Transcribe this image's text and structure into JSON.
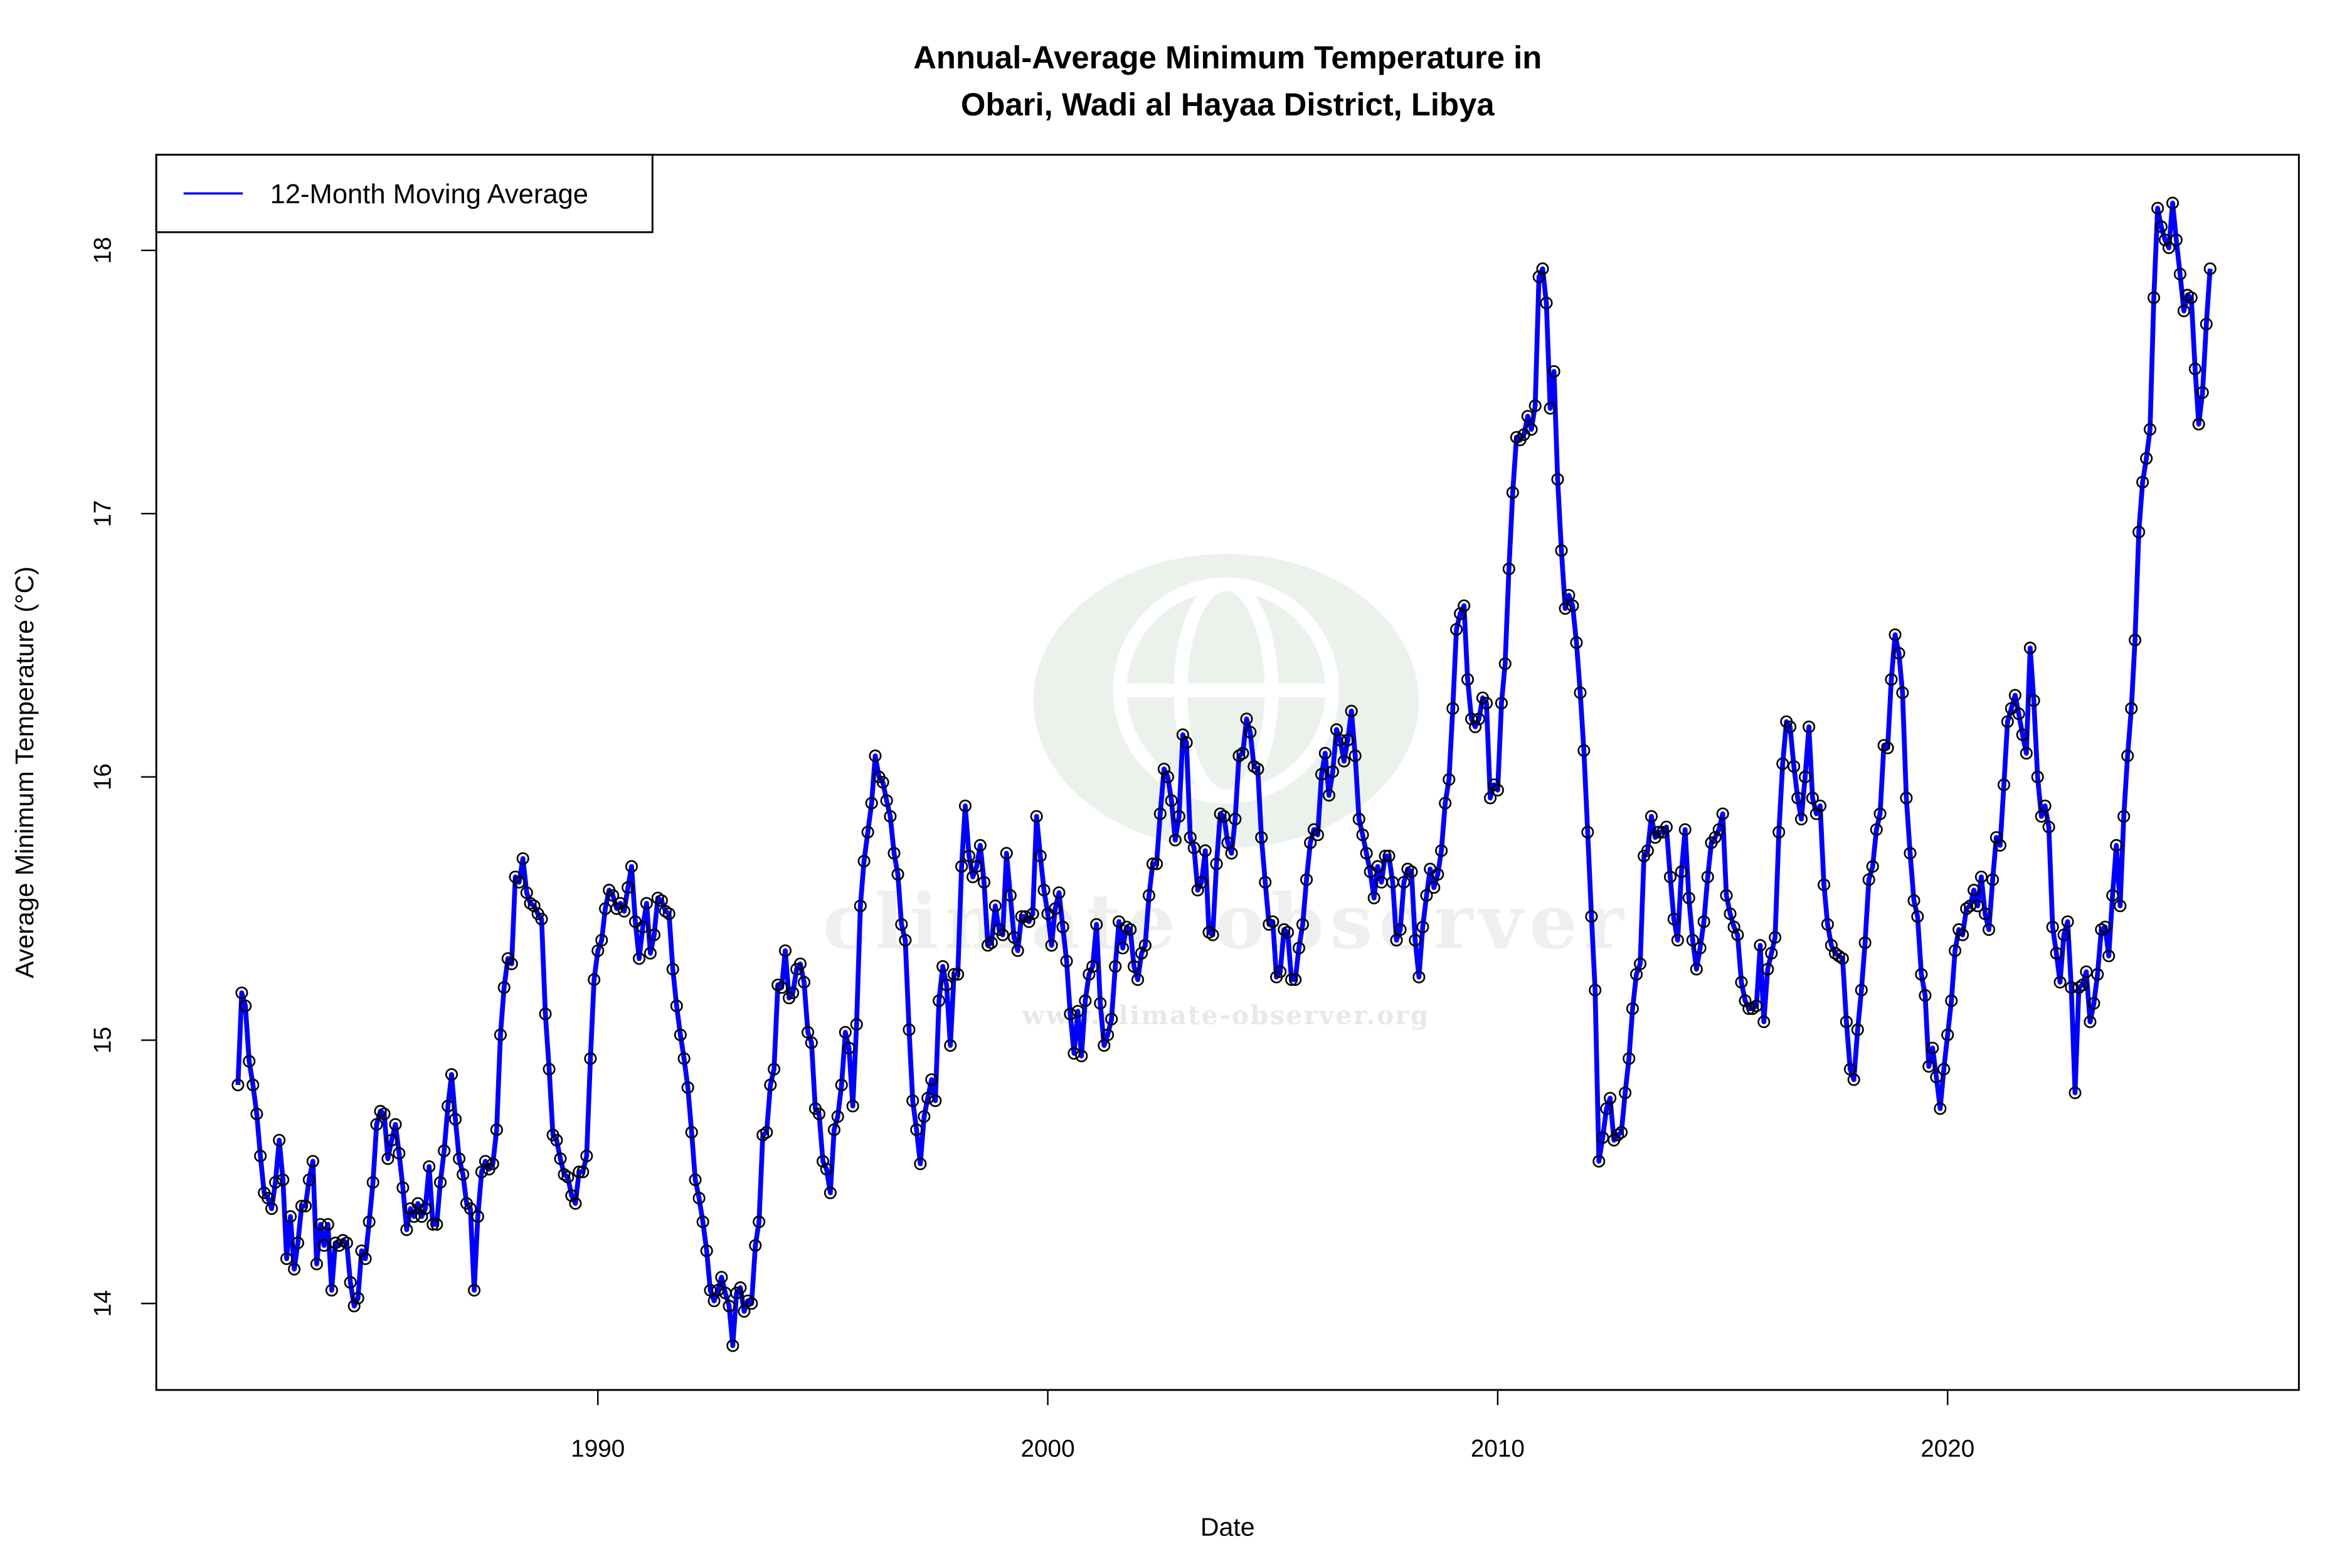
{
  "chart_data": {
    "type": "line",
    "title": "Annual-Average Minimum Temperature in",
    "subtitle": "Obari, Wadi al Hayaa District, Libya",
    "xlabel": "Date",
    "ylabel": "Average Minimum Temperature (°C)",
    "x_ticks": [
      "1990",
      "2000",
      "2010",
      "2020"
    ],
    "y_ticks": [
      "14",
      "15",
      "16",
      "17",
      "18"
    ],
    "xlim": [
      "1981-07",
      "2026-10"
    ],
    "ylim": [
      13.64,
      18.35
    ],
    "grid": false,
    "legend": {
      "placement": "top-left",
      "entries": [
        "12-Month Moving Average"
      ]
    },
    "series": [
      {
        "name": "12-Month Moving Average",
        "color": "#0000FF",
        "marker": "open-circle",
        "frequency": "monthly",
        "values_by_year": {
          "1982": [
            14.83,
            15.18,
            15.13,
            14.92,
            14.83,
            14.72,
            14.56,
            14.42,
            14.4,
            14.36,
            14.46,
            14.62
          ],
          "1983": [
            14.47,
            14.17,
            14.33,
            14.13,
            14.23,
            14.37,
            14.37,
            14.47,
            14.54,
            14.15,
            14.3,
            14.22
          ],
          "1984": [
            14.3,
            14.05,
            14.23,
            14.22,
            14.24,
            14.23,
            14.08,
            13.99,
            14.02,
            14.2,
            14.17,
            14.31
          ],
          "1985": [
            14.46,
            14.68,
            14.73,
            14.72,
            14.55,
            14.62,
            14.68,
            14.57,
            14.44,
            14.28,
            14.36,
            14.33
          ],
          "1986": [
            14.38,
            14.33,
            14.36,
            14.52,
            14.3,
            14.3,
            14.46,
            14.58,
            14.75,
            14.87,
            14.7,
            14.55
          ],
          "1987": [
            14.49,
            14.38,
            14.36,
            14.05,
            14.33,
            14.5,
            14.54,
            14.51,
            14.53,
            14.66,
            15.02,
            15.2
          ],
          "1988": [
            15.31,
            15.29,
            15.62,
            15.6,
            15.69,
            15.56,
            15.52,
            15.51,
            15.48,
            15.46,
            15.1,
            14.89
          ],
          "1989": [
            14.64,
            14.62,
            14.55,
            14.49,
            14.48,
            14.41,
            14.38,
            14.5,
            14.5,
            14.56,
            14.93,
            15.23
          ],
          "1990": [
            15.34,
            15.38,
            15.5,
            15.57,
            15.55,
            15.5,
            15.52,
            15.49,
            15.58,
            15.66,
            15.45,
            15.31
          ],
          "1991": [
            15.43,
            15.52,
            15.33,
            15.4,
            15.54,
            15.53,
            15.49,
            15.48,
            15.27,
            15.13,
            15.02,
            14.93
          ],
          "1992": [
            14.82,
            14.65,
            14.47,
            14.4,
            14.31,
            14.2,
            14.05,
            14.01,
            14.05,
            14.1,
            14.04,
            13.99
          ],
          "1993": [
            13.84,
            14.04,
            14.06,
            13.97,
            14.01,
            14.0,
            14.22,
            14.31,
            14.64,
            14.65,
            14.83,
            14.89
          ],
          "1994": [
            15.21,
            15.2,
            15.34,
            15.16,
            15.18,
            15.27,
            15.29,
            15.22,
            15.03,
            14.99,
            14.74,
            14.72
          ],
          "1995": [
            14.54,
            14.51,
            14.42,
            14.66,
            14.71,
            14.83,
            15.03,
            14.97,
            14.75,
            15.06,
            15.51,
            15.68
          ],
          "1996": [
            15.79,
            15.9,
            16.08,
            16.0,
            15.98,
            15.91,
            15.85,
            15.71,
            15.63,
            15.44,
            15.38,
            15.04
          ],
          "1997": [
            14.77,
            14.66,
            14.53,
            14.71,
            14.78,
            14.85,
            14.77,
            15.15,
            15.28,
            15.21,
            14.98,
            15.25
          ],
          "1998": [
            15.25,
            15.66,
            15.89,
            15.7,
            15.62,
            15.66,
            15.74,
            15.6,
            15.36,
            15.37,
            15.51,
            15.42
          ],
          "1999": [
            15.4,
            15.71,
            15.55,
            15.39,
            15.34,
            15.47,
            15.47,
            15.45,
            15.48,
            15.85,
            15.7,
            15.57
          ],
          "2000": [
            15.48,
            15.36,
            15.5,
            15.56,
            15.43,
            15.3,
            15.1,
            14.95,
            15.11,
            14.94,
            15.15,
            15.25
          ],
          "2001": [
            15.28,
            15.44,
            15.14,
            14.98,
            15.02,
            15.08,
            15.28,
            15.45,
            15.35,
            15.43,
            15.42,
            15.28
          ],
          "2002": [
            15.23,
            15.33,
            15.36,
            15.55,
            15.67,
            15.67,
            15.86,
            16.03,
            16.0,
            15.91,
            15.76,
            15.85
          ],
          "2003": [
            16.16,
            16.13,
            15.77,
            15.73,
            15.57,
            15.6,
            15.72,
            15.41,
            15.4,
            15.67,
            15.86,
            15.85
          ],
          "2004": [
            15.75,
            15.71,
            15.84,
            16.08,
            16.09,
            16.22,
            16.17,
            16.04,
            16.03,
            15.77,
            15.6,
            15.44
          ],
          "2005": [
            15.45,
            15.24,
            15.26,
            15.42,
            15.41,
            15.23,
            15.23,
            15.35,
            15.44,
            15.61,
            15.75,
            15.8
          ],
          "2006": [
            15.78,
            16.01,
            16.09,
            15.93,
            16.02,
            16.18,
            16.14,
            16.06,
            16.14,
            16.25,
            16.08,
            15.84
          ],
          "2007": [
            15.78,
            15.71,
            15.64,
            15.54,
            15.66,
            15.6,
            15.7,
            15.7,
            15.6,
            15.38,
            15.42,
            15.6
          ],
          "2008": [
            15.65,
            15.64,
            15.38,
            15.24,
            15.43,
            15.55,
            15.65,
            15.58,
            15.63,
            15.72,
            15.9,
            15.99
          ],
          "2009": [
            16.26,
            16.56,
            16.62,
            16.65,
            16.37,
            16.22,
            16.19,
            16.22,
            16.3,
            16.28,
            15.92,
            15.97
          ],
          "2010": [
            15.95,
            16.28,
            16.43,
            16.79,
            17.08,
            17.29,
            17.28,
            17.3,
            17.37,
            17.32,
            17.41,
            17.9
          ],
          "2011": [
            17.93,
            17.8,
            17.4,
            17.54,
            17.13,
            16.86,
            16.64,
            16.69,
            16.65,
            16.51,
            16.32,
            16.1
          ],
          "2012": [
            15.79,
            15.47,
            15.19,
            14.54,
            14.63,
            14.74,
            14.78,
            14.62,
            14.64,
            14.65,
            14.8,
            14.93
          ],
          "2013": [
            15.12,
            15.25,
            15.29,
            15.7,
            15.72,
            15.85,
            15.77,
            15.79,
            15.79,
            15.81,
            15.62,
            15.46
          ],
          "2014": [
            15.38,
            15.64,
            15.8,
            15.54,
            15.38,
            15.27,
            15.35,
            15.45,
            15.62,
            15.75,
            15.77,
            15.8
          ],
          "2015": [
            15.86,
            15.55,
            15.48,
            15.43,
            15.4,
            15.22,
            15.15,
            15.12,
            15.12,
            15.13,
            15.36,
            15.07
          ],
          "2016": [
            15.27,
            15.33,
            15.39,
            15.79,
            16.05,
            16.21,
            16.19,
            16.04,
            15.92,
            15.84,
            16.0,
            16.19
          ],
          "2017": [
            15.92,
            15.86,
            15.89,
            15.59,
            15.44,
            15.36,
            15.33,
            15.32,
            15.31,
            15.07,
            14.89,
            14.85
          ],
          "2018": [
            15.04,
            15.19,
            15.37,
            15.61,
            15.66,
            15.8,
            15.86,
            16.12,
            16.11,
            16.37,
            16.54,
            16.47
          ],
          "2019": [
            16.32,
            15.92,
            15.71,
            15.53,
            15.47,
            15.25,
            15.17,
            14.9,
            14.97,
            14.86,
            14.74,
            14.89
          ],
          "2020": [
            15.02,
            15.15,
            15.34,
            15.42,
            15.4,
            15.5,
            15.51,
            15.57,
            15.51,
            15.62,
            15.48,
            15.42
          ],
          "2021": [
            15.61,
            15.77,
            15.74,
            15.97,
            16.21,
            16.26,
            16.31,
            16.24,
            16.16,
            16.09,
            16.49,
            16.29
          ],
          "2022": [
            16.0,
            15.85,
            15.89,
            15.81,
            15.43,
            15.33,
            15.22,
            15.4,
            15.45,
            15.2,
            14.8,
            15.2
          ],
          "2023": [
            15.21,
            15.26,
            15.07,
            15.14,
            15.25,
            15.42,
            15.43,
            15.32,
            15.55,
            15.74,
            15.51,
            15.85
          ],
          "2024": [
            16.08,
            16.26,
            16.52,
            16.93,
            17.12,
            17.21,
            17.32,
            17.82,
            18.16,
            18.09,
            18.04,
            18.01
          ],
          "2025": [
            18.18,
            18.04,
            17.91,
            17.77,
            17.83,
            17.82,
            17.55,
            17.34,
            17.46,
            17.72,
            17.93
          ]
        }
      }
    ]
  },
  "watermark": {
    "brand": "climate observer",
    "url": "www.climate-observer.org",
    "color": "#E8F0EA"
  }
}
